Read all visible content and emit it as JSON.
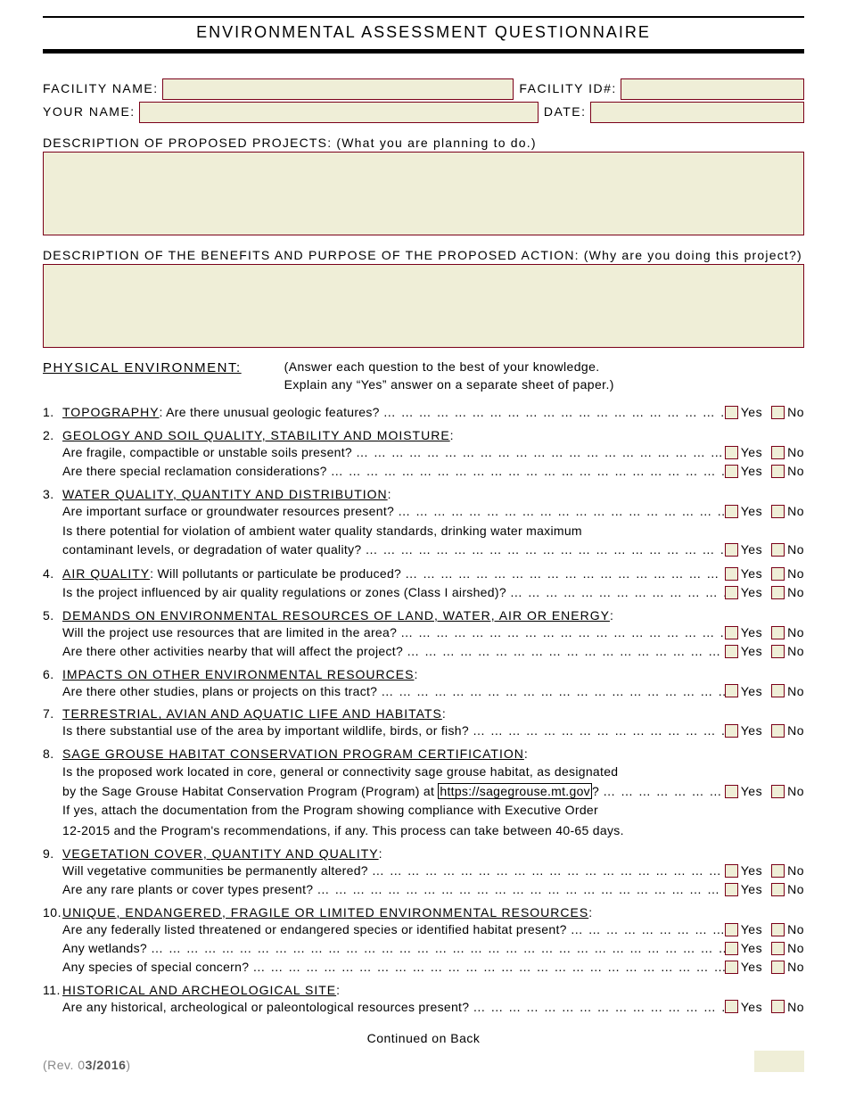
{
  "colors": {
    "field_bg": "#efeed7",
    "field_border": "#7a0019",
    "page_bg": "#ffffff",
    "text": "#000000",
    "rev_text": "#888888"
  },
  "title": "ENVIRONMENTAL ASSESSMENT QUESTIONNAIRE",
  "header": {
    "facility_name_label": "FACILITY NAME:",
    "facility_id_label": "FACILITY ID#:",
    "your_name_label": "YOUR NAME:",
    "date_label": "DATE:"
  },
  "descriptions": {
    "projects_label": "DESCRIPTION OF PROPOSED PROJECTS: (What you are planning to do.)",
    "benefits_label": "DESCRIPTION OF THE BENEFITS AND PURPOSE OF THE PROPOSED ACTION: (Why are you doing this project?)"
  },
  "physical": {
    "title": "PHYSICAL ENVIRONMENT:",
    "note_l1": "(Answer each question to the best of your knowledge.",
    "note_l2": "Explain any “Yes” answer on a separate sheet of paper.)"
  },
  "yn": {
    "yes": "Yes",
    "no": "No"
  },
  "questions": [
    {
      "num": "1.",
      "title": "TOPOGRAPHY",
      "inline_text": ": Are there unusual geologic features?",
      "inline_has_yn": true,
      "subs": []
    },
    {
      "num": "2.",
      "title": "GEOLOGY AND SOIL QUALITY, STABILITY AND MOISTURE",
      "title_suffix": ":",
      "subs": [
        {
          "text": "Are fragile, compactible or unstable soils present?"
        },
        {
          "text": "Are there special reclamation considerations?"
        }
      ]
    },
    {
      "num": "3.",
      "title": "WATER QUALITY, QUANTITY AND DISTRIBUTION",
      "title_suffix": ":",
      "subs": [
        {
          "text": "Are important surface or groundwater resources present?"
        },
        {
          "wrap_l1": "Is there potential for violation of ambient water quality standards, drinking water maximum",
          "wrap_l2": "contaminant levels, or degradation of water quality?"
        }
      ]
    },
    {
      "num": "4.",
      "title": "AIR QUALITY",
      "inline_text": ": Will pollutants or particulate be produced?",
      "inline_has_yn": true,
      "subs": [
        {
          "text": "Is the project influenced by air quality regulations or zones (Class I airshed)?"
        }
      ]
    },
    {
      "num": "5.",
      "title": "DEMANDS ON ENVIRONMENTAL RESOURCES OF LAND, WATER, AIR OR ENERGY",
      "title_suffix": ":",
      "subs": [
        {
          "text": "Will the project use resources that are limited in the area?"
        },
        {
          "text": "Are there other activities nearby that will affect the project?"
        }
      ]
    },
    {
      "num": "6.",
      "title": "IMPACTS ON OTHER ENVIRONMENTAL RESOURCES",
      "title_suffix": ":",
      "subs": [
        {
          "text": "Are there other studies, plans or projects on this tract?"
        }
      ]
    },
    {
      "num": "7.",
      "title": "TERRESTRIAL, AVIAN AND AQUATIC LIFE AND HABITATS",
      "title_suffix": ":",
      "subs": [
        {
          "text": "Is there substantial use of the area by important wildlife, birds, or fish?"
        }
      ]
    },
    {
      "num": "8.",
      "title": "SAGE GROUSE HABITAT CONSERVATION PROGRAM CERTIFICATION",
      "title_suffix": ":",
      "sage_l1": "Is the proposed work located in core, general or connectivity sage grouse habitat, as designated",
      "sage_l2a": "by the Sage Grouse Habitat Conservation Program (Program) at ",
      "sage_link": "https://sagegrouse.mt.gov",
      "sage_l2b": "?",
      "sage_after_l1": "If yes, attach the documentation from the Program showing compliance with Executive Order",
      "sage_after_l2": "12-2015 and the Program's recommendations, if any.  This process can take between 40-65 days.",
      "subs": []
    },
    {
      "num": "9.",
      "title": "VEGETATION COVER, QUANTITY AND QUALITY",
      "title_suffix": ":",
      "subs": [
        {
          "text": "Will vegetative communities be permanently altered?"
        },
        {
          "text": "Are any rare plants or cover types present?"
        }
      ]
    },
    {
      "num": "10.",
      "title": "UNIQUE, ENDANGERED, FRAGILE OR LIMITED ENVIRONMENTAL RESOURCES",
      "title_suffix": ":",
      "subs": [
        {
          "text": "Are any federally listed threatened or endangered species or identified habitat present?"
        },
        {
          "text": "Any wetlands?"
        },
        {
          "text": "Any species of special concern?"
        }
      ]
    },
    {
      "num": "11.",
      "title": "HISTORICAL AND ARCHEOLOGICAL SITE",
      "title_suffix": ":",
      "subs": [
        {
          "text": "Are any historical, archeological or paleontological resources present?"
        }
      ]
    }
  ],
  "footer": {
    "continued": "Continued on Back",
    "rev_prefix": "(Rev. 0",
    "rev_bold": "3/2016",
    "rev_suffix": ")"
  }
}
